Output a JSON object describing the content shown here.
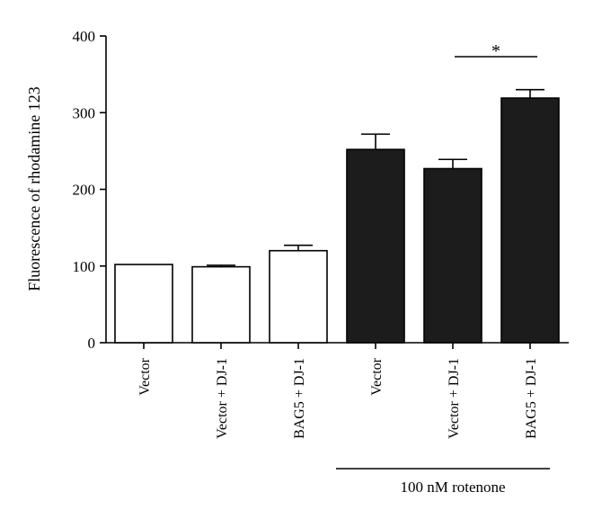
{
  "chart_data": {
    "type": "bar",
    "ylabel": "Fluorescence of rhodamine 123",
    "ylim": [
      0,
      400
    ],
    "yticks": [
      0,
      100,
      200,
      300,
      400
    ],
    "grid": false,
    "categories": [
      "Vector",
      "Vector + DJ-1",
      "BAG5 + DJ-1",
      "Vector",
      "Vector + DJ-1",
      "BAG5 + DJ-1"
    ],
    "values": [
      102,
      99,
      120,
      252,
      227,
      319
    ],
    "errors": [
      0,
      2,
      7,
      20,
      12,
      11
    ],
    "fills": [
      "#ffffff",
      "#ffffff",
      "#ffffff",
      "#1c1c1c",
      "#1c1c1c",
      "#1c1c1c"
    ],
    "group_label": "100 nM rotenone",
    "group_range": [
      3,
      5
    ],
    "significance": {
      "from": 4,
      "to": 5,
      "label": "*"
    }
  }
}
